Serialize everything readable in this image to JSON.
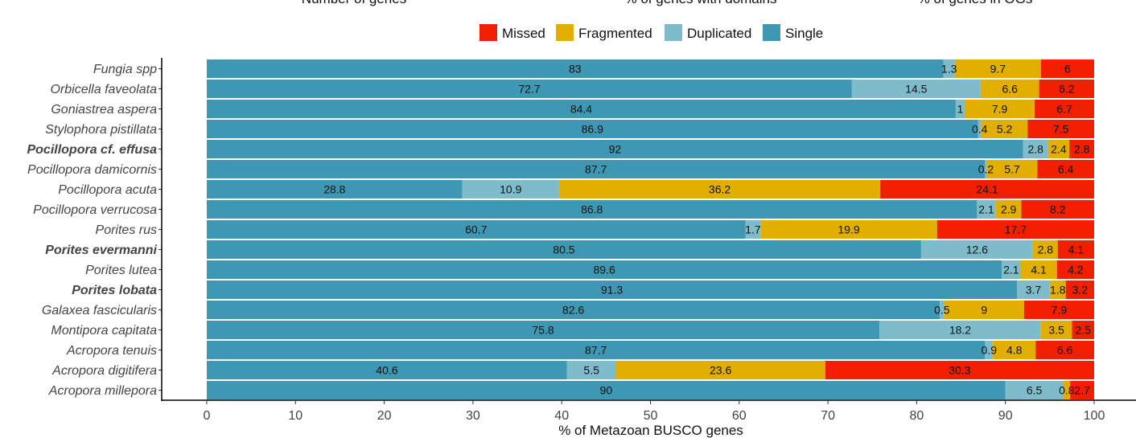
{
  "top_labels": [
    "Number of genes",
    "% of genes with domains",
    "% of genes in OGs"
  ],
  "colors": {
    "Single": "#3e98b3",
    "Duplicated": "#7fbccb",
    "Fragmented": "#e2ae00",
    "Missed": "#f21e00"
  },
  "chart_data": {
    "type": "bar",
    "orientation": "horizontal",
    "stacked": true,
    "xlabel": "% of Metazoan BUSCO genes",
    "xlim": [
      0,
      100
    ],
    "xticks": [
      0,
      10,
      20,
      30,
      40,
      50,
      60,
      70,
      80,
      90,
      100
    ],
    "legend_position": "top",
    "legend": [
      "Missed",
      "Fragmented",
      "Duplicated",
      "Single"
    ],
    "stack_order": [
      "Single",
      "Duplicated",
      "Fragmented",
      "Missed"
    ],
    "bold_categories": [
      "Pocillopora cf. effusa",
      "Porites evermanni",
      "Porites lobata"
    ],
    "categories": [
      "Fungia spp",
      "Orbicella faveolata",
      "Goniastrea aspera",
      "Stylophora pistillata",
      "Pocillopora cf. effusa",
      "Pocillopora damicornis",
      "Pocillopora acuta",
      "Pocillopora verrucosa",
      "Porites rus",
      "Porites evermanni",
      "Porites lutea",
      "Porites lobata",
      "Galaxea fascicularis",
      "Montipora capitata",
      "Acropora tenuis",
      "Acropora digitifera",
      "Acropora millepora"
    ],
    "series": [
      {
        "name": "Single",
        "values": [
          83,
          72.7,
          84.4,
          86.9,
          92,
          87.7,
          28.8,
          86.8,
          60.7,
          80.5,
          89.6,
          91.3,
          82.6,
          75.8,
          87.7,
          40.6,
          90
        ]
      },
      {
        "name": "Duplicated",
        "values": [
          1.3,
          14.5,
          1,
          0.4,
          2.8,
          0.2,
          10.9,
          2.1,
          1.7,
          12.6,
          2.1,
          3.7,
          0.5,
          18.2,
          0.9,
          5.5,
          6.5
        ]
      },
      {
        "name": "Fragmented",
        "values": [
          9.7,
          6.6,
          7.9,
          5.2,
          2.4,
          5.7,
          36.2,
          2.9,
          19.9,
          2.8,
          4.1,
          1.8,
          9,
          3.5,
          4.8,
          23.6,
          0.8
        ]
      },
      {
        "name": "Missed",
        "values": [
          6,
          6.2,
          6.7,
          7.5,
          2.8,
          6.4,
          24.1,
          8.2,
          17.7,
          4.1,
          4.2,
          3.2,
          7.9,
          2.5,
          6.6,
          30.3,
          2.7
        ]
      }
    ]
  }
}
